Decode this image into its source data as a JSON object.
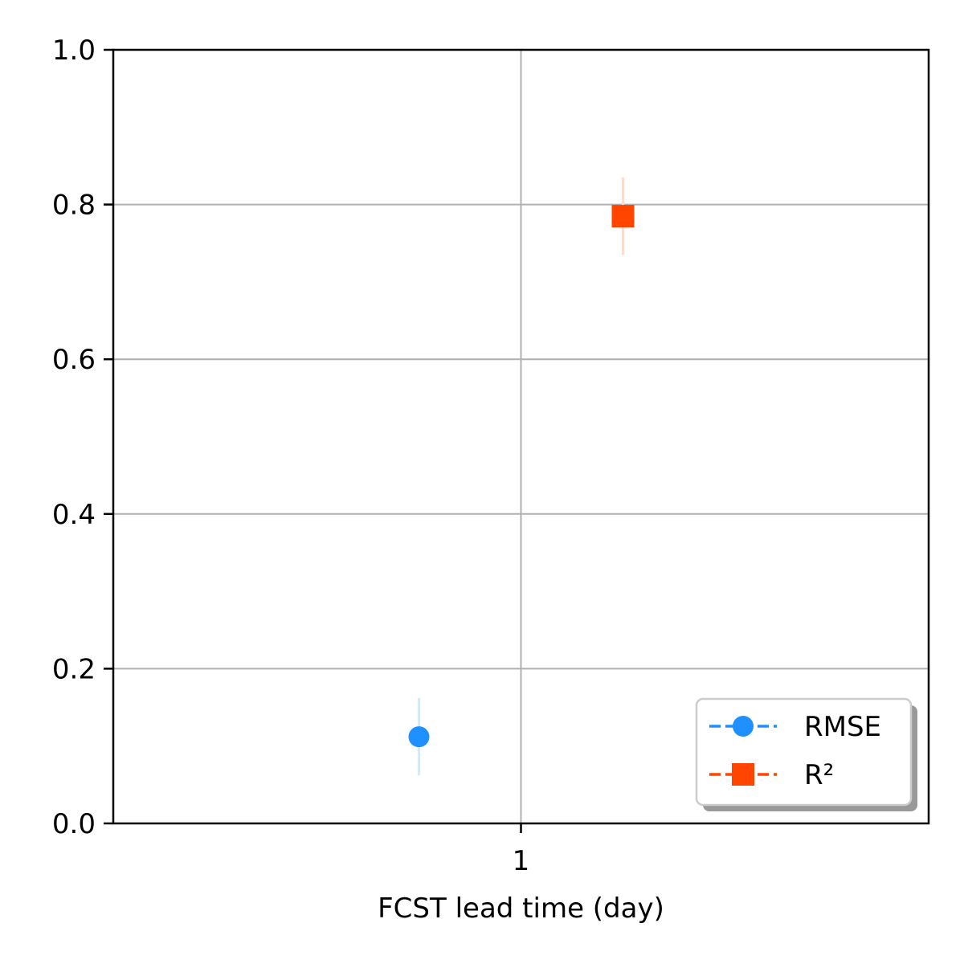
{
  "chart_data": {
    "type": "scatter",
    "title": "",
    "xlabel": "FCST lead time (day)",
    "ylabel": "",
    "x_categories": [
      "1"
    ],
    "ylim": [
      0.0,
      1.0
    ],
    "y_ticks": [
      "0.0",
      "0.2",
      "0.4",
      "0.6",
      "0.8",
      "1.0"
    ],
    "grid": true,
    "legend_position": "lower-right",
    "series": [
      {
        "name": "RMSE",
        "marker": "circle",
        "color": "#1E90FF",
        "errorbar_color": "#D6E9FB",
        "offset": "left",
        "x": "1",
        "y": 0.112,
        "error_low": 0.062,
        "error_high": 0.162
      },
      {
        "name": "R²",
        "marker": "square",
        "color": "#FF4500",
        "errorbar_color": "#FADDCF",
        "offset": "right",
        "x": "1",
        "y": 0.785,
        "error_low": 0.735,
        "error_high": 0.835
      }
    ]
  }
}
